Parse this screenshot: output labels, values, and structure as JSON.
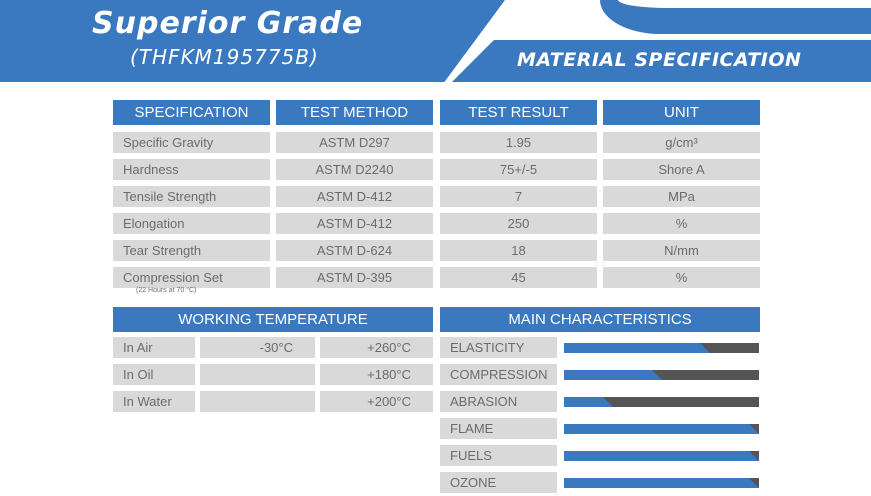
{
  "header": {
    "title": "Superior Grade",
    "code": "(THFKM195775B)",
    "section": "MATERIAL SPECIFICATION"
  },
  "spec_table": {
    "columns": [
      "SPECIFICATION",
      "TEST METHOD",
      "TEST RESULT",
      "UNIT"
    ],
    "rows": [
      {
        "spec": "Specific Gravity",
        "method": "ASTM D297",
        "result": "1.95",
        "unit": "g/cm³"
      },
      {
        "spec": "Hardness",
        "method": "ASTM D2240",
        "result": "75+/-5",
        "unit": "Shore A"
      },
      {
        "spec": "Tensile Strength",
        "method": "ASTM D-412",
        "result": "7",
        "unit": "MPa"
      },
      {
        "spec": "Elongation",
        "method": "ASTM D-412",
        "result": "250",
        "unit": "%"
      },
      {
        "spec": "Tear Strength",
        "method": "ASTM D-624",
        "result": "18",
        "unit": "N/mm"
      },
      {
        "spec": "Compression Set",
        "method": "ASTM D-395",
        "result": "45",
        "unit": "%"
      }
    ],
    "note": "(22 Hours at 70 °C)"
  },
  "working_temperature": {
    "title": "WORKING TEMPERATURE",
    "rows": [
      {
        "label": "In Air",
        "min": "-30°C",
        "max": "+260°C"
      },
      {
        "label": "In Oil",
        "min": "",
        "max": "+180°C"
      },
      {
        "label": "In Water",
        "min": "",
        "max": "+200°C"
      }
    ]
  },
  "main_characteristics": {
    "title": "MAIN CHARACTERISTICS",
    "items": [
      {
        "label": "ELASTICITY",
        "level": 0.75
      },
      {
        "label": "COMPRESSION",
        "level": 0.5
      },
      {
        "label": "ABRASION",
        "level": 0.25
      },
      {
        "label": "FLAME",
        "level": 1.0
      },
      {
        "label": "FUELS",
        "level": 1.0
      },
      {
        "label": "OZONE",
        "level": 1.0
      }
    ]
  },
  "colors": {
    "accent": "#3a78bf",
    "cell": "#d9d9d9",
    "bar_track": "#555555"
  }
}
